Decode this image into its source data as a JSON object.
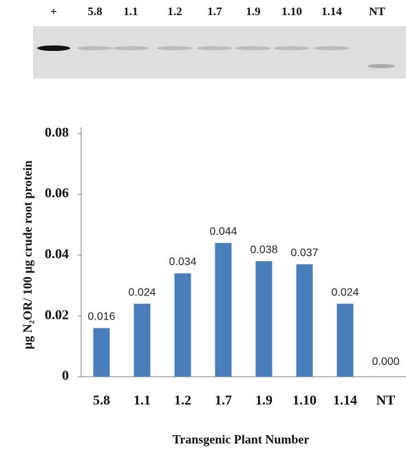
{
  "blot": {
    "lanes": [
      "+",
      "5.8",
      "1.1",
      "1.2",
      "1.7",
      "1.9",
      "1.10",
      "1.14",
      "NT"
    ]
  },
  "chart_data": {
    "type": "bar",
    "y_label": "μg N₂OR/ 100 μg crude root protein",
    "x_label": "Transgenic Plant Number",
    "categories": [
      "5.8",
      "1.1",
      "1.2",
      "1.7",
      "1.9",
      "1.10",
      "1.14",
      "NT"
    ],
    "values": [
      0.016,
      0.024,
      0.034,
      0.044,
      0.038,
      0.037,
      0.024,
      0
    ],
    "value_labels": [
      "0.016",
      "0.024",
      "0.034",
      "0.044",
      "0.038",
      "0.037",
      "0.024",
      "0.000"
    ],
    "color": "#4a7ebb",
    "ylim": [
      0,
      0.082
    ],
    "yticks": [
      0,
      0.02,
      0.04,
      0.06,
      0.08
    ]
  }
}
